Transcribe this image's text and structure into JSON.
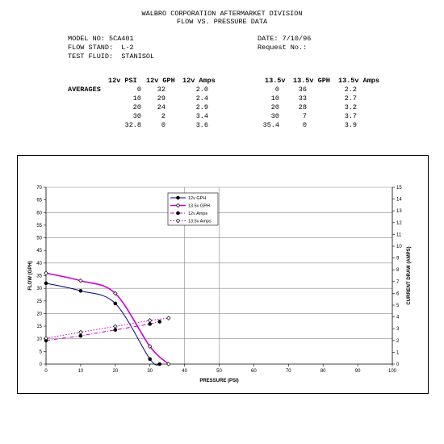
{
  "header": {
    "line1": "WALBRO CORPORATION AFTERMARKET DIVISION",
    "line2": "FLOW  VS.  PRESSURE DATA"
  },
  "info": {
    "model": "MODEL NO: 5CA401",
    "stand": "FLOW STAND:  L-2",
    "fluid": "TEST FLUID:  STANISOL",
    "date": "DATE: 7/10/96",
    "request": "Request No.:"
  },
  "table": {
    "label": "AVERAGES",
    "left_headers": [
      "12v PSI",
      "12v GPH",
      "12v Amps"
    ],
    "right_headers": [
      "13.5v",
      "13.5v GPH",
      "13.5v Amps"
    ],
    "left_rows": [
      [
        "0",
        "32",
        "2.0"
      ],
      [
        "10",
        "29",
        "2.4"
      ],
      [
        "20",
        "24",
        "2.9"
      ],
      [
        "30",
        "2",
        "3.4"
      ],
      [
        "32.8",
        "0",
        "3.6"
      ]
    ],
    "right_rows": [
      [
        "0",
        "36",
        "2.2"
      ],
      [
        "10",
        "33",
        "2.7"
      ],
      [
        "20",
        "28",
        "3.2"
      ],
      [
        "30",
        "7",
        "3.7"
      ],
      [
        "35.4",
        "0",
        "3.9"
      ]
    ]
  },
  "chart_data": {
    "type": "line",
    "xlabel": "PRESSURE (PSI)",
    "ylabel": "FLOW (GPH)",
    "y2label": "CURRENT DRAW (AMPS)",
    "xlim": [
      0,
      100
    ],
    "ylim": [
      0,
      70
    ],
    "y2lim": [
      0,
      15
    ],
    "x_ticks": [
      0,
      10,
      20,
      30,
      40,
      50,
      60,
      70,
      80,
      90,
      100
    ],
    "y_ticks": [
      0,
      5,
      10,
      15,
      20,
      25,
      30,
      35,
      40,
      45,
      50,
      55,
      60,
      65,
      70
    ],
    "y2_ticks": [
      0,
      1,
      2,
      3,
      4,
      5,
      6,
      7,
      8,
      9,
      10,
      11,
      12,
      13,
      14,
      15
    ],
    "legend_position": "top-center",
    "series": [
      {
        "name": "12v GPH",
        "axis": "left",
        "color": "#000080",
        "style": "solid",
        "marker": "dot",
        "x": [
          0,
          10,
          20,
          30,
          32.8
        ],
        "y": [
          32,
          29,
          24,
          2,
          0
        ]
      },
      {
        "name": "13.5v GPH",
        "axis": "left",
        "color": "#cc00cc",
        "style": "solid",
        "marker": "diamond-open",
        "x": [
          0,
          10,
          20,
          30,
          35.4
        ],
        "y": [
          36,
          33,
          28,
          7,
          0
        ]
      },
      {
        "name": "12v Amps",
        "axis": "right",
        "color": "#cc00cc",
        "style": "dashdot",
        "marker": "dot",
        "x": [
          0,
          10,
          20,
          30,
          32.8
        ],
        "y": [
          2.0,
          2.4,
          2.9,
          3.4,
          3.6
        ]
      },
      {
        "name": "13.5v Amps",
        "axis": "right",
        "color": "#cc00cc",
        "style": "dotted",
        "marker": "diamond-open",
        "x": [
          0,
          10,
          20,
          30,
          35.4
        ],
        "y": [
          2.2,
          2.7,
          3.2,
          3.7,
          3.9
        ]
      }
    ]
  }
}
